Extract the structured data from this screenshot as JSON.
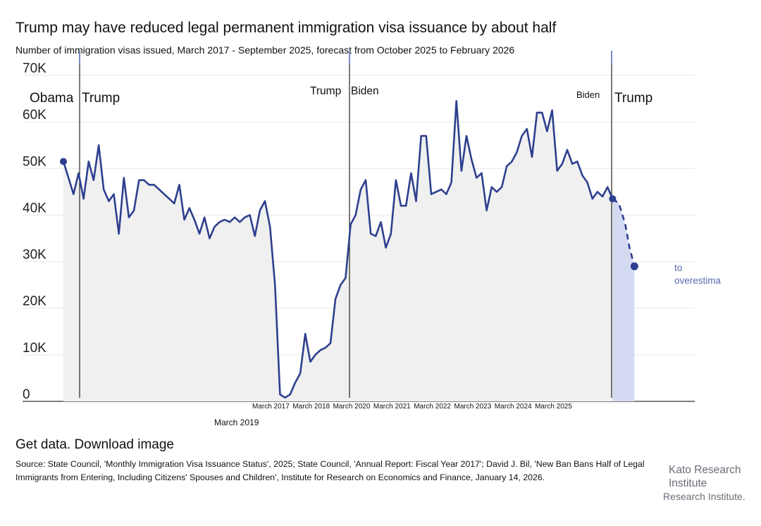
{
  "header": {
    "title": "Trump may have reduced legal permanent immigration visa issuance by about half",
    "subtitle": "Number of immigration visas issued, March 2017 - September 2025, forecast from October 2025 to February 2026"
  },
  "chart_data": {
    "type": "line",
    "ylim": [
      0,
      70000
    ],
    "y_ticks": [
      0,
      10000,
      20000,
      30000,
      40000,
      50000,
      60000,
      70000
    ],
    "y_tick_labels": [
      "0",
      "10K",
      "20K",
      "30K",
      "40K",
      "50K",
      "60K",
      "70K"
    ],
    "x_tick_labels": [
      "March 2017",
      "March 2018",
      "March 2020",
      "March 2021",
      "March 2022",
      "March 2023",
      "March 2024",
      "March 2025"
    ],
    "x_extra_label": "March 2019",
    "series": [
      {
        "name": "Immigration visas issued",
        "values": [
          51500,
          48000,
          44500,
          49000,
          43500,
          51500,
          47500,
          55000,
          45500,
          43000,
          44500,
          36000,
          48000,
          39500,
          41000,
          47500,
          47500,
          46500,
          46500,
          45500,
          44500,
          43500,
          42500,
          46500,
          39000,
          41500,
          39000,
          36000,
          39500,
          35000,
          37500,
          38500,
          39000,
          38500,
          39500,
          38500,
          39500,
          40000,
          35500,
          41000,
          43000,
          37500,
          25000,
          1500,
          800,
          1500,
          4000,
          6000,
          14500,
          8500,
          10000,
          11000,
          11500,
          12500,
          22000,
          25000,
          26500,
          38000,
          40000,
          45500,
          47500,
          36000,
          35500,
          38500,
          33000,
          36000,
          47500,
          42000,
          42000,
          49000,
          43000,
          57000,
          57000,
          44500,
          45000,
          45500,
          44500,
          47000,
          64500,
          49500,
          57000,
          52000,
          48000,
          49000,
          41000,
          46000,
          45000,
          46000,
          50500,
          51500,
          53500,
          57000,
          58500,
          52500,
          62000,
          62000,
          58000,
          62500,
          49500,
          51000,
          54000,
          51000,
          51500,
          48500,
          47000,
          43500,
          45000,
          44000,
          46000,
          43500
        ],
        "forecast": [
          43500,
          42500,
          38000,
          33000,
          29000
        ],
        "start_marker_value": 51500,
        "end_marker_value": 29000
      }
    ],
    "era_labels": [
      "Obama",
      "Trump",
      "Trump",
      "Biden",
      "Biden",
      "Trump"
    ],
    "annotation_lines": [
      "to",
      "overestima"
    ]
  },
  "footer": {
    "get_data": "Get data.",
    "download_image": "Download image",
    "source": "Source: State Council, 'Monthly Immigration Visa Issuance Status', 2025; State Council, 'Annual Report: Fiscal Year 2017'; David J. Bil, 'New Ban Bans Half of Legal Immigrants from Entering, Including Citizens' Spouses and Children', Institute for Research on Economics and Finance, January 14, 2026."
  },
  "brand": {
    "line1": "Kato Research",
    "line2": "Institute",
    "line3": "Research Institute."
  },
  "colors": {
    "line": "#2e3f8e",
    "area": "#f0f0f0",
    "forecast_area": "#d5daf3",
    "grid": "#e6e6e6",
    "annotation": "#5a6bb0"
  }
}
